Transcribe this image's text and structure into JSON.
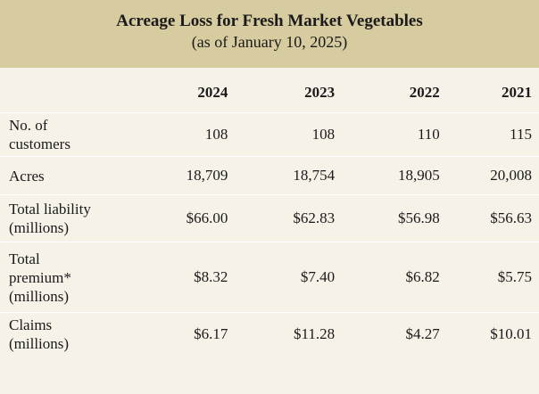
{
  "header": {
    "title": "Acreage Loss for Fresh Market Vegetables",
    "subtitle": "(as of January 10, 2025)"
  },
  "table": {
    "columns": [
      "",
      "2024",
      "2023",
      "2022",
      "2021"
    ],
    "rows": [
      {
        "label": "No. of customers",
        "values": [
          "108",
          "108",
          "110",
          "115"
        ]
      },
      {
        "label": "Acres",
        "values": [
          "18,709",
          "18,754",
          "18,905",
          "20,008"
        ]
      },
      {
        "label": "Total liability (millions)",
        "values": [
          "$66.00",
          "$62.83",
          "$56.98",
          "$56.63"
        ]
      },
      {
        "label": "Total premium* (millions)",
        "values": [
          "$8.32",
          "$7.40",
          "$6.82",
          "$5.75"
        ]
      },
      {
        "label": "Claims (millions)",
        "values": [
          "$6.17",
          "$11.28",
          "$4.27",
          "$10.01"
        ]
      }
    ]
  },
  "colors": {
    "header_bg": "#d7cba0",
    "body_bg": "#f6f2e8",
    "text": "#1a1a1a"
  }
}
